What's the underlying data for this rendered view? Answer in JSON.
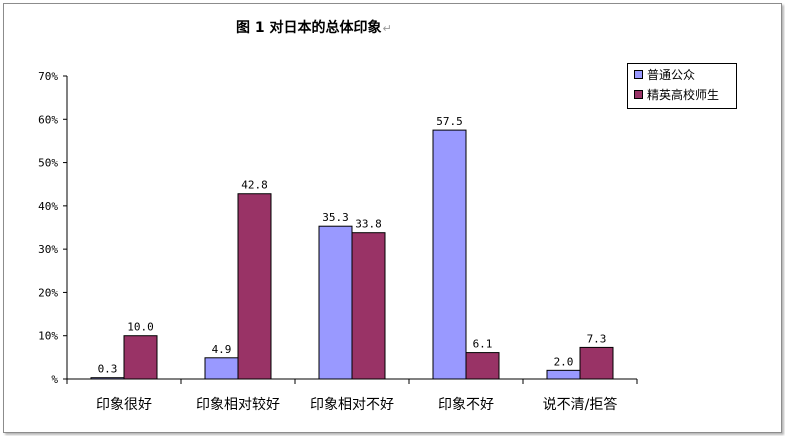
{
  "chart_data": {
    "type": "bar",
    "title": "图 1 对日本的总体印象",
    "title_mark": "↵",
    "categories": [
      "印象很好",
      "印象相对较好",
      "印象相对不好",
      "印象不好",
      "说不清/拒答"
    ],
    "series": [
      {
        "name": "普通公众",
        "values": [
          0.3,
          4.9,
          35.3,
          57.5,
          2.0
        ],
        "labels": [
          "0.3",
          "4.9",
          "35.3",
          "57.5",
          "2.0"
        ],
        "color": "#9999ff"
      },
      {
        "name": "精英高校师生",
        "values": [
          10.0,
          42.8,
          33.8,
          6.1,
          7.3
        ],
        "labels": [
          "10.0",
          "42.8",
          "33.8",
          "6.1",
          "7.3"
        ],
        "color": "#993366"
      }
    ],
    "ylim": [
      0,
      70
    ],
    "yticks": [
      0,
      10,
      20,
      30,
      40,
      50,
      60,
      70
    ],
    "ytick_labels": [
      "%",
      "10%",
      "20%",
      "30%",
      "40%",
      "50%",
      "60%",
      "70%"
    ],
    "xlabel": "",
    "ylabel": "",
    "grid": false,
    "legend": "top-right"
  }
}
